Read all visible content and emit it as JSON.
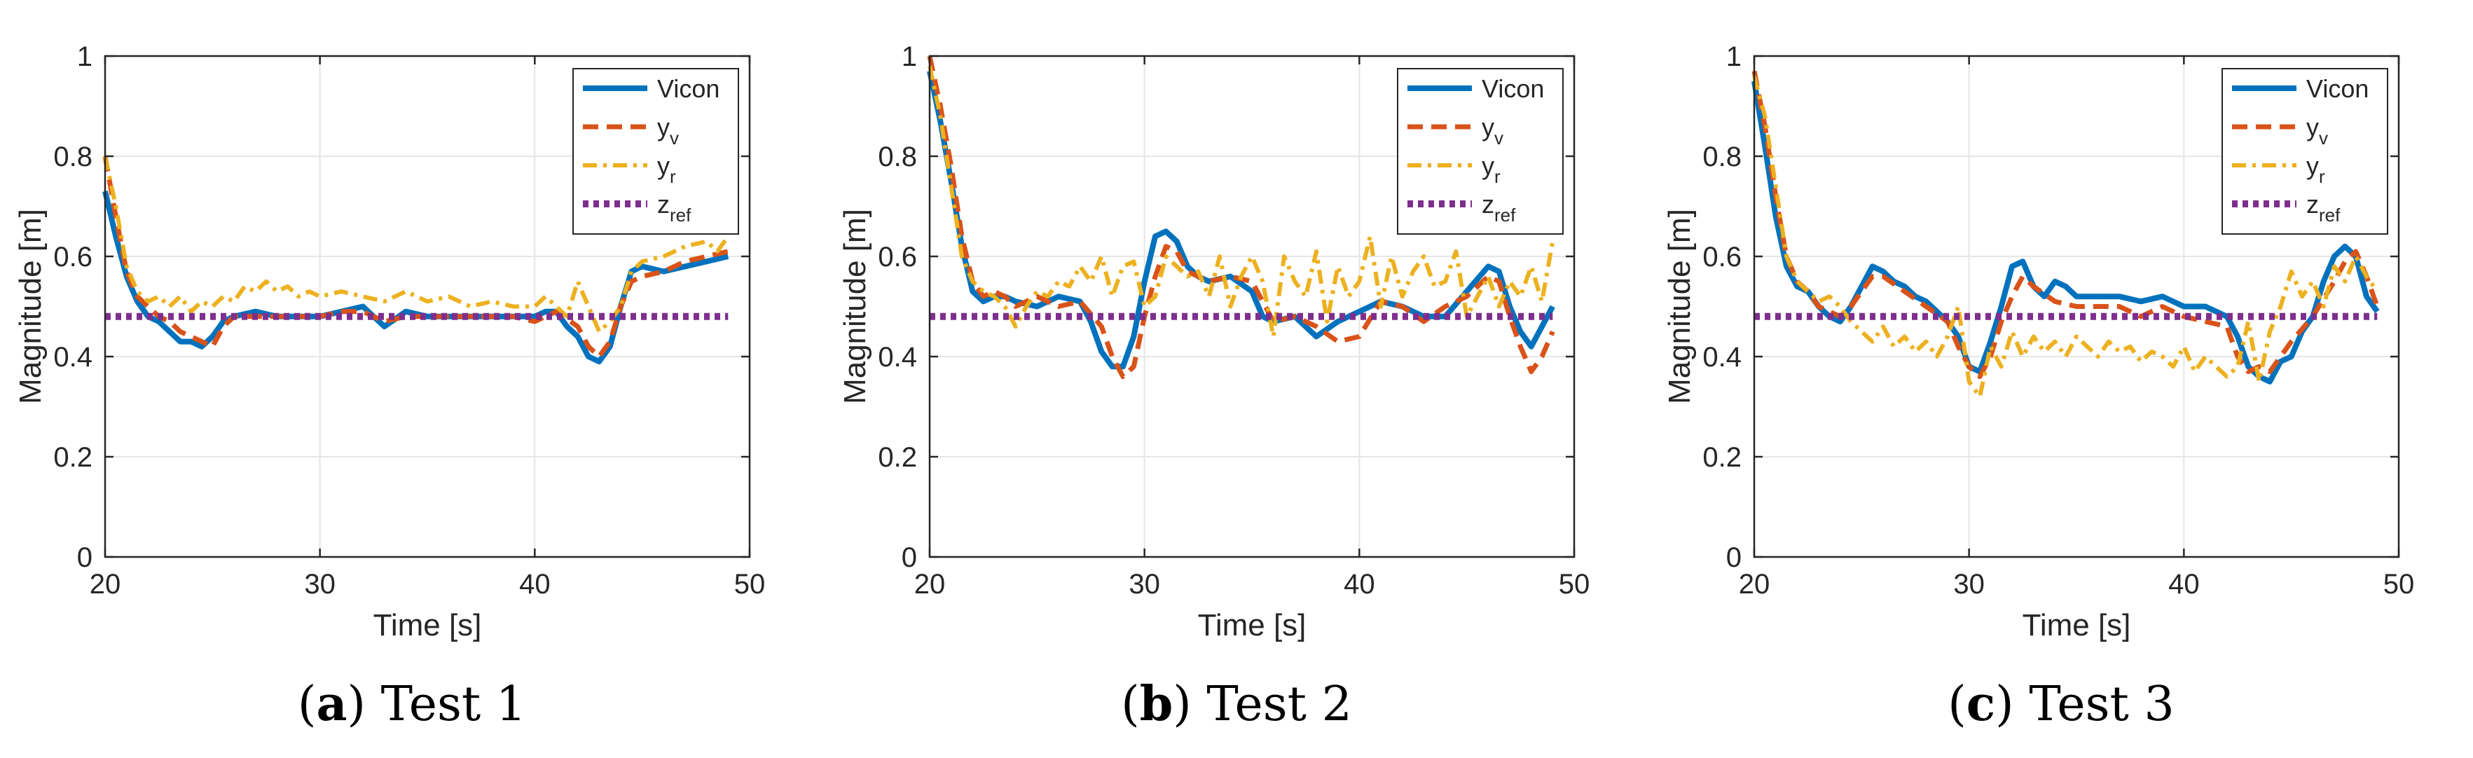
{
  "colors": {
    "vicon": "#0072BD",
    "y_v": "#D95319",
    "y_r": "#EDB120",
    "z_ref": "#7E2F8E",
    "grid": "#E6E6E6",
    "axis": "#262626"
  },
  "chart_data": [
    {
      "type": "line",
      "caption_letter": "a",
      "caption_text": "Test 1",
      "xlabel": "Time [s]",
      "ylabel": "Magnitude [m]",
      "xlim": [
        20,
        50
      ],
      "ylim": [
        0,
        1
      ],
      "xticks": [
        20,
        30,
        40,
        50
      ],
      "yticks": [
        0,
        0.2,
        0.4,
        0.6,
        0.8,
        1
      ],
      "grid": true,
      "legend_position": "top-right",
      "series": [
        {
          "name": "Vicon",
          "sub": "",
          "style": "solid",
          "color": "#0072BD",
          "x": [
            20,
            20.5,
            21,
            21.5,
            22,
            22.5,
            23,
            23.5,
            24,
            24.5,
            25,
            25.5,
            26,
            27,
            28,
            29,
            30,
            31,
            32,
            33,
            34,
            35,
            36,
            37,
            38,
            39,
            40,
            40.5,
            41,
            41.5,
            42,
            42.5,
            43,
            43.5,
            44,
            44.5,
            45,
            46,
            47,
            48,
            49
          ],
          "y": [
            0.73,
            0.64,
            0.56,
            0.51,
            0.48,
            0.47,
            0.45,
            0.43,
            0.43,
            0.42,
            0.44,
            0.47,
            0.48,
            0.49,
            0.48,
            0.48,
            0.48,
            0.49,
            0.5,
            0.46,
            0.49,
            0.48,
            0.48,
            0.48,
            0.48,
            0.48,
            0.48,
            0.49,
            0.49,
            0.46,
            0.44,
            0.4,
            0.39,
            0.42,
            0.5,
            0.57,
            0.58,
            0.57,
            0.58,
            0.59,
            0.6
          ]
        },
        {
          "name": "y",
          "sub": "v",
          "style": "dashed",
          "color": "#D95319",
          "x": [
            20,
            20.5,
            21,
            21.5,
            22,
            22.5,
            23,
            23.5,
            24,
            24.5,
            25,
            25.5,
            26,
            27,
            28,
            29,
            30,
            31,
            32,
            33,
            34,
            35,
            36,
            37,
            38,
            39,
            40,
            41,
            42,
            42.5,
            43,
            43.5,
            44,
            44.5,
            45,
            46,
            47,
            48,
            49
          ],
          "y": [
            0.8,
            0.68,
            0.57,
            0.52,
            0.5,
            0.48,
            0.47,
            0.45,
            0.44,
            0.43,
            0.42,
            0.46,
            0.48,
            0.48,
            0.48,
            0.48,
            0.48,
            0.49,
            0.49,
            0.47,
            0.48,
            0.48,
            0.48,
            0.48,
            0.48,
            0.48,
            0.47,
            0.49,
            0.46,
            0.42,
            0.4,
            0.43,
            0.5,
            0.55,
            0.56,
            0.57,
            0.59,
            0.6,
            0.61
          ]
        },
        {
          "name": "y",
          "sub": "r",
          "style": "dashdot",
          "color": "#EDB120",
          "x": [
            20,
            20.5,
            21,
            21.5,
            22,
            22.5,
            23,
            23.5,
            24,
            24.5,
            25,
            25.5,
            26,
            26.5,
            27,
            27.5,
            28,
            28.5,
            29,
            29.5,
            30,
            31,
            32,
            33,
            34,
            35,
            36,
            37,
            38,
            39,
            40,
            40.5,
            41,
            41.5,
            42,
            42.5,
            43,
            43.5,
            44,
            44.5,
            45,
            46,
            47,
            48,
            48.5,
            49
          ],
          "y": [
            0.8,
            0.7,
            0.58,
            0.53,
            0.51,
            0.52,
            0.5,
            0.52,
            0.49,
            0.51,
            0.5,
            0.52,
            0.51,
            0.54,
            0.53,
            0.55,
            0.53,
            0.54,
            0.52,
            0.53,
            0.52,
            0.53,
            0.52,
            0.51,
            0.53,
            0.51,
            0.52,
            0.5,
            0.51,
            0.5,
            0.5,
            0.52,
            0.5,
            0.48,
            0.55,
            0.5,
            0.45,
            0.47,
            0.5,
            0.57,
            0.59,
            0.6,
            0.62,
            0.63,
            0.61,
            0.64
          ]
        },
        {
          "name": "z",
          "sub": "ref",
          "style": "dotted",
          "color": "#7E2F8E",
          "x": [
            20,
            49
          ],
          "y": [
            0.48,
            0.48
          ]
        }
      ]
    },
    {
      "type": "line",
      "caption_letter": "b",
      "caption_text": "Test 2",
      "xlabel": "Time [s]",
      "ylabel": "Magnitude [m]",
      "xlim": [
        20,
        50
      ],
      "ylim": [
        0,
        1
      ],
      "xticks": [
        20,
        30,
        40,
        50
      ],
      "yticks": [
        0,
        0.2,
        0.4,
        0.6,
        0.8,
        1
      ],
      "grid": true,
      "legend_position": "top-right",
      "series": [
        {
          "name": "Vicon",
          "sub": "",
          "style": "solid",
          "color": "#0072BD",
          "x": [
            20,
            20.5,
            21,
            21.5,
            22,
            22.5,
            23,
            23.5,
            24,
            25,
            26,
            27,
            27.5,
            28,
            28.5,
            29,
            29.5,
            30,
            30.5,
            31,
            31.5,
            32,
            32.5,
            33,
            34,
            35,
            35.5,
            36,
            37,
            38,
            39,
            40,
            41,
            42,
            43,
            44,
            45,
            46,
            46.5,
            47,
            47.5,
            48,
            48.5,
            49
          ],
          "y": [
            0.97,
            0.87,
            0.75,
            0.62,
            0.53,
            0.51,
            0.52,
            0.52,
            0.51,
            0.5,
            0.52,
            0.51,
            0.47,
            0.41,
            0.38,
            0.38,
            0.44,
            0.55,
            0.64,
            0.65,
            0.63,
            0.58,
            0.56,
            0.55,
            0.56,
            0.53,
            0.48,
            0.47,
            0.48,
            0.44,
            0.47,
            0.49,
            0.51,
            0.5,
            0.48,
            0.48,
            0.53,
            0.58,
            0.57,
            0.5,
            0.45,
            0.42,
            0.46,
            0.5
          ]
        },
        {
          "name": "y",
          "sub": "v",
          "style": "dashed",
          "color": "#D95319",
          "x": [
            20,
            20.5,
            21,
            21.5,
            22,
            22.5,
            23,
            23.5,
            24,
            25,
            26,
            27,
            28,
            28.5,
            29,
            29.5,
            30,
            30.5,
            31,
            31.5,
            32,
            33,
            34,
            35,
            36,
            37,
            38,
            39,
            40,
            41,
            42,
            43,
            44,
            45,
            46,
            46.5,
            47,
            47.5,
            48,
            48.5,
            49
          ],
          "y": [
            1.0,
            0.9,
            0.78,
            0.64,
            0.55,
            0.52,
            0.53,
            0.52,
            0.5,
            0.52,
            0.5,
            0.51,
            0.46,
            0.4,
            0.36,
            0.38,
            0.48,
            0.56,
            0.62,
            0.61,
            0.57,
            0.55,
            0.56,
            0.55,
            0.47,
            0.48,
            0.46,
            0.43,
            0.44,
            0.51,
            0.5,
            0.47,
            0.5,
            0.52,
            0.56,
            0.55,
            0.48,
            0.42,
            0.37,
            0.4,
            0.45
          ]
        },
        {
          "name": "y",
          "sub": "r",
          "style": "dashdot",
          "color": "#EDB120",
          "x": [
            20,
            20.5,
            21,
            21.5,
            22,
            22.5,
            23,
            23.5,
            24,
            24.5,
            25,
            25.5,
            26,
            26.5,
            27,
            27.5,
            28,
            28.5,
            29,
            29.5,
            30,
            30.5,
            31,
            31.5,
            32,
            32.5,
            33,
            33.5,
            34,
            34.5,
            35,
            35.5,
            36,
            36.5,
            37,
            37.5,
            38,
            38.5,
            39,
            39.5,
            40,
            40.5,
            41,
            41.5,
            42,
            42.5,
            43,
            43.5,
            44,
            44.5,
            45,
            45.5,
            46,
            46.5,
            47,
            47.5,
            48,
            48.5,
            49
          ],
          "y": [
            0.98,
            0.88,
            0.74,
            0.6,
            0.55,
            0.53,
            0.52,
            0.5,
            0.46,
            0.5,
            0.53,
            0.52,
            0.55,
            0.54,
            0.58,
            0.55,
            0.6,
            0.52,
            0.58,
            0.59,
            0.5,
            0.52,
            0.6,
            0.58,
            0.56,
            0.57,
            0.52,
            0.6,
            0.5,
            0.56,
            0.6,
            0.55,
            0.44,
            0.6,
            0.55,
            0.52,
            0.61,
            0.47,
            0.58,
            0.52,
            0.55,
            0.64,
            0.5,
            0.6,
            0.52,
            0.57,
            0.6,
            0.54,
            0.55,
            0.61,
            0.48,
            0.52,
            0.56,
            0.5,
            0.55,
            0.52,
            0.58,
            0.51,
            0.63
          ]
        },
        {
          "name": "z",
          "sub": "ref",
          "style": "dotted",
          "color": "#7E2F8E",
          "x": [
            20,
            49
          ],
          "y": [
            0.48,
            0.48
          ]
        }
      ]
    },
    {
      "type": "line",
      "caption_letter": "c",
      "caption_text": "Test 3",
      "xlabel": "Time [s]",
      "ylabel": "Magnitude [m]",
      "xlim": [
        20,
        50
      ],
      "ylim": [
        0,
        1
      ],
      "xticks": [
        20,
        30,
        40,
        50
      ],
      "yticks": [
        0,
        0.2,
        0.4,
        0.6,
        0.8,
        1
      ],
      "grid": true,
      "legend_position": "top-right",
      "series": [
        {
          "name": "Vicon",
          "sub": "",
          "style": "solid",
          "color": "#0072BD",
          "x": [
            20,
            20.5,
            21,
            21.5,
            22,
            22.5,
            23,
            23.5,
            24,
            24.5,
            25,
            25.5,
            26,
            26.5,
            27,
            27.5,
            28,
            28.5,
            29,
            29.5,
            30,
            30.5,
            31,
            31.5,
            32,
            32.5,
            33,
            33.5,
            34,
            34.5,
            35,
            36,
            37,
            38,
            39,
            40,
            41,
            42,
            42.5,
            43,
            43.5,
            44,
            44.5,
            45,
            45.5,
            46,
            46.5,
            47,
            47.5,
            48,
            48.5,
            49
          ],
          "y": [
            0.95,
            0.82,
            0.68,
            0.58,
            0.54,
            0.53,
            0.5,
            0.48,
            0.47,
            0.5,
            0.54,
            0.58,
            0.57,
            0.55,
            0.54,
            0.52,
            0.51,
            0.49,
            0.47,
            0.44,
            0.38,
            0.37,
            0.43,
            0.5,
            0.58,
            0.59,
            0.54,
            0.52,
            0.55,
            0.54,
            0.52,
            0.52,
            0.52,
            0.51,
            0.52,
            0.5,
            0.5,
            0.48,
            0.44,
            0.38,
            0.36,
            0.35,
            0.39,
            0.4,
            0.45,
            0.48,
            0.55,
            0.6,
            0.62,
            0.6,
            0.52,
            0.49
          ]
        },
        {
          "name": "y",
          "sub": "v",
          "style": "dashed",
          "color": "#D95319",
          "x": [
            20,
            20.5,
            21,
            21.5,
            22,
            22.5,
            23,
            23.5,
            24,
            24.5,
            25,
            25.5,
            26,
            27,
            28,
            29,
            29.5,
            30,
            30.5,
            31,
            31.5,
            32,
            32.5,
            33,
            34,
            35,
            36,
            37,
            38,
            39,
            40,
            41,
            42,
            42.5,
            43,
            43.5,
            44,
            44.5,
            45,
            46,
            47,
            47.5,
            48,
            48.5,
            49
          ],
          "y": [
            0.97,
            0.86,
            0.72,
            0.6,
            0.55,
            0.53,
            0.5,
            0.49,
            0.48,
            0.5,
            0.53,
            0.56,
            0.56,
            0.53,
            0.5,
            0.47,
            0.42,
            0.38,
            0.36,
            0.4,
            0.47,
            0.52,
            0.56,
            0.54,
            0.51,
            0.5,
            0.5,
            0.5,
            0.48,
            0.5,
            0.48,
            0.47,
            0.46,
            0.4,
            0.37,
            0.38,
            0.37,
            0.4,
            0.43,
            0.48,
            0.55,
            0.59,
            0.61,
            0.56,
            0.5
          ]
        },
        {
          "name": "y",
          "sub": "r",
          "style": "dashdot",
          "color": "#EDB120",
          "x": [
            20,
            20.5,
            21,
            21.5,
            22,
            22.5,
            23,
            23.5,
            24,
            24.5,
            25,
            25.5,
            26,
            26.5,
            27,
            27.5,
            28,
            28.5,
            29,
            29.5,
            30,
            30.5,
            31,
            31.5,
            32,
            32.5,
            33,
            33.5,
            34,
            34.5,
            35,
            35.5,
            36,
            36.5,
            37,
            37.5,
            38,
            38.5,
            39,
            39.5,
            40,
            40.5,
            41,
            41.5,
            42,
            42.5,
            43,
            43.5,
            44,
            44.5,
            45,
            45.5,
            46,
            46.5,
            47,
            47.5,
            48,
            48.5,
            49
          ],
          "y": [
            0.96,
            0.88,
            0.74,
            0.6,
            0.55,
            0.53,
            0.51,
            0.52,
            0.5,
            0.47,
            0.45,
            0.43,
            0.46,
            0.42,
            0.44,
            0.41,
            0.43,
            0.4,
            0.44,
            0.5,
            0.35,
            0.32,
            0.42,
            0.38,
            0.45,
            0.4,
            0.44,
            0.41,
            0.43,
            0.4,
            0.44,
            0.42,
            0.4,
            0.43,
            0.41,
            0.42,
            0.39,
            0.41,
            0.4,
            0.38,
            0.42,
            0.37,
            0.4,
            0.38,
            0.36,
            0.38,
            0.47,
            0.35,
            0.45,
            0.5,
            0.57,
            0.52,
            0.55,
            0.5,
            0.58,
            0.55,
            0.6,
            0.56,
            0.53
          ]
        },
        {
          "name": "z",
          "sub": "ref",
          "style": "dotted",
          "color": "#7E2F8E",
          "x": [
            20,
            49
          ],
          "y": [
            0.48,
            0.48
          ]
        }
      ]
    }
  ]
}
